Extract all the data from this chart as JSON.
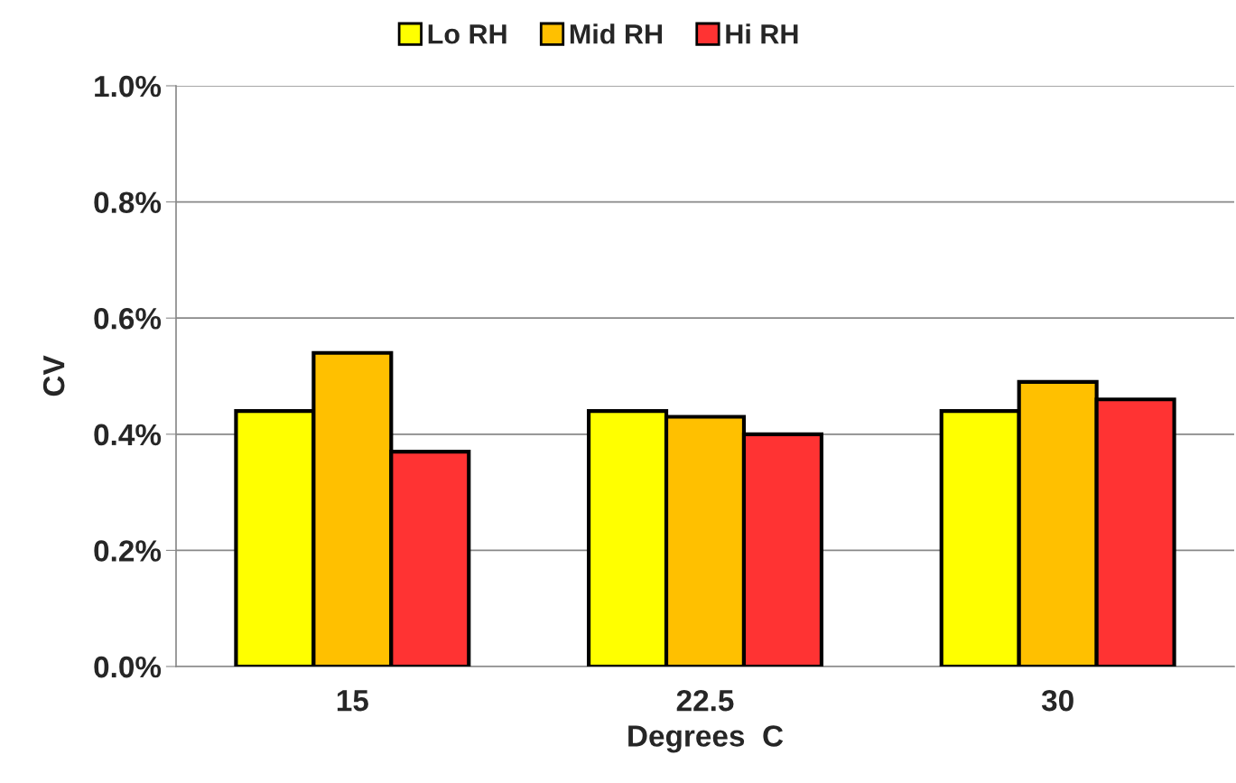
{
  "chart_data": {
    "type": "bar",
    "xlabel": "Degrees  C",
    "ylabel": "CV",
    "categories": [
      "15",
      "22.5",
      "30"
    ],
    "series": [
      {
        "name": "Lo RH",
        "color": "#ffff00",
        "values": [
          0.44,
          0.44,
          0.44
        ]
      },
      {
        "name": "Mid RH",
        "color": "#ffc000",
        "values": [
          0.54,
          0.43,
          0.49
        ]
      },
      {
        "name": "Hi RH",
        "color": "#ff3333",
        "values": [
          0.37,
          0.4,
          0.46
        ]
      }
    ],
    "ylim": [
      0,
      1.0
    ],
    "yticks": [
      {
        "value": 0,
        "label": "0.0%"
      },
      {
        "value": 0.2,
        "label": "0.2%"
      },
      {
        "value": 0.4,
        "label": "0.4%"
      },
      {
        "value": 0.6,
        "label": "0.6%"
      },
      {
        "value": 0.8,
        "label": "0.8%"
      },
      {
        "value": 1.0,
        "label": "1.0%"
      }
    ],
    "grid": "y",
    "legend": "top"
  }
}
